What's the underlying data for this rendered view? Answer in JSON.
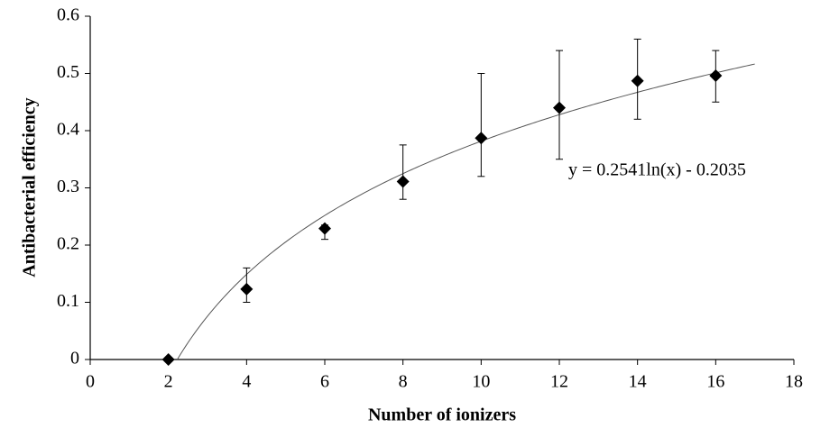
{
  "chart_data": {
    "type": "scatter",
    "x_label": "Number of ionizers",
    "y_label": "Antibacterial efficiency",
    "x": [
      2,
      4,
      6,
      8,
      10,
      12,
      14,
      16
    ],
    "series": [
      {
        "color": "#000000",
        "values": [
          0,
          0.123,
          0.229,
          0.311,
          0.387,
          0.44,
          0.487,
          0.496
        ],
        "error_plus": [
          null,
          0.037,
          0.006,
          0.064,
          0.113,
          0.1,
          0.073,
          0.044
        ],
        "error_minus": [
          null,
          0.023,
          0.019,
          0.031,
          0.067,
          0.09,
          0.067,
          0.046
        ]
      }
    ],
    "trendline": {
      "label": "y = 0.2541ln(x) - 0.2035",
      "a": 0.2541,
      "b": -0.2035,
      "xmax": 17,
      "color": "#555555"
    },
    "xlim": [
      0,
      18
    ],
    "xticks": [
      0,
      2,
      4,
      6,
      8,
      10,
      12,
      14,
      16,
      18
    ],
    "ylim": [
      0,
      0.6
    ],
    "yticks": [
      0,
      0.1,
      0.2,
      0.3,
      0.4,
      0.5,
      0.6
    ]
  }
}
